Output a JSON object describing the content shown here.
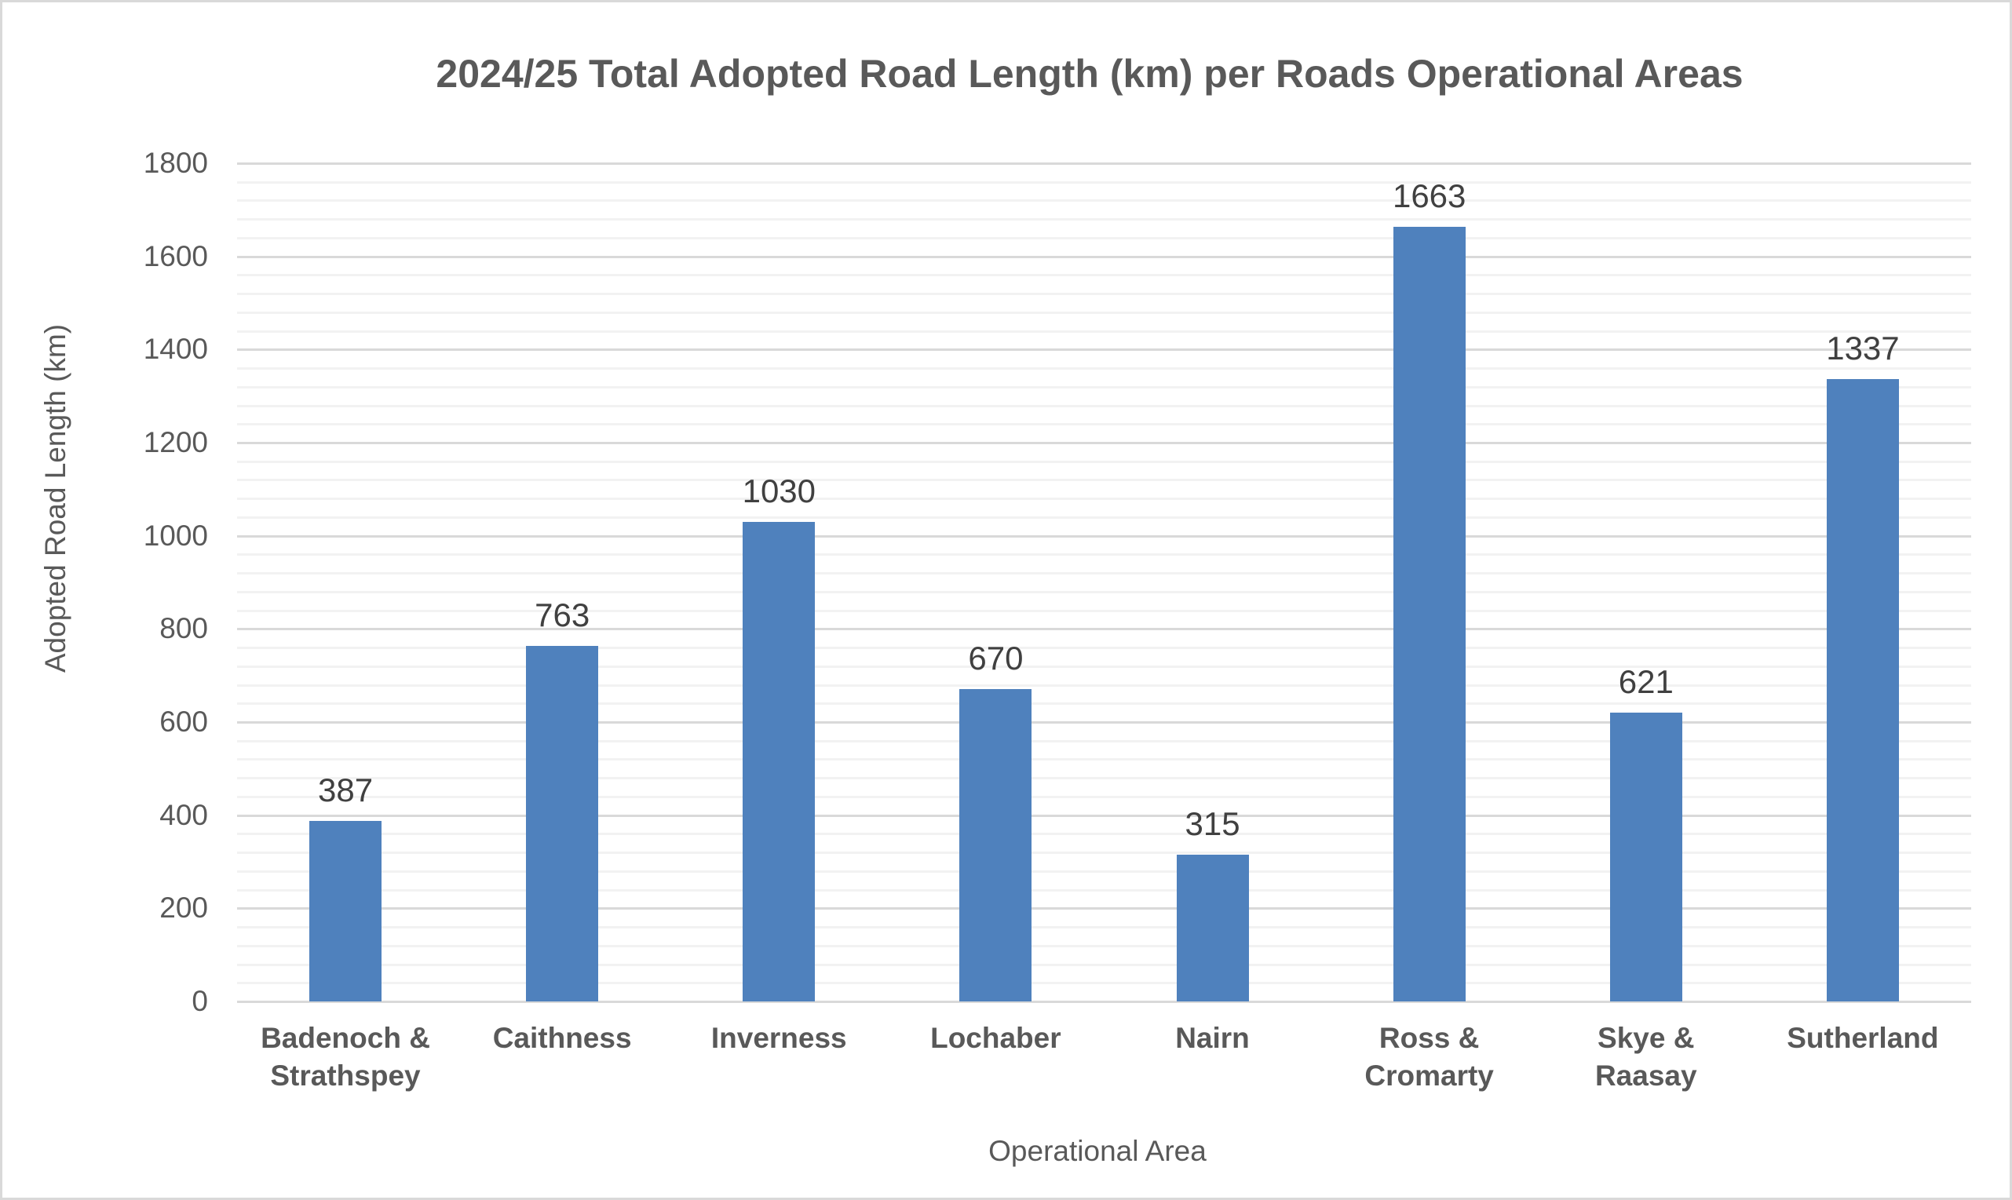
{
  "chart_data": {
    "type": "bar",
    "title": "2024/25 Total Adopted Road Length (km) per Roads Operational Areas",
    "xlabel": "Operational Area",
    "ylabel": "Adopted Road Length (km)",
    "categories": [
      "Badenoch & Strathspey",
      "Caithness",
      "Inverness",
      "Lochaber",
      "Nairn",
      "Ross & Cromarty",
      "Skye & Raasay",
      "Sutherland"
    ],
    "category_lines": [
      [
        "Badenoch &",
        "Strathspey"
      ],
      [
        "Caithness"
      ],
      [
        "Inverness"
      ],
      [
        "Lochaber"
      ],
      [
        "Nairn"
      ],
      [
        "Ross &",
        "Cromarty"
      ],
      [
        "Skye &",
        "Raasay"
      ],
      [
        "Sutherland"
      ]
    ],
    "values": [
      387,
      763,
      1030,
      670,
      315,
      1663,
      621,
      1337
    ],
    "data_labels": [
      "387",
      "763",
      "1030",
      "670",
      "315",
      "1663",
      "621",
      "1337"
    ],
    "ylim": [
      0,
      1800
    ],
    "yticks": [
      0,
      200,
      400,
      600,
      800,
      1000,
      1200,
      1400,
      1600,
      1800
    ],
    "ytick_labels": [
      "0",
      "200",
      "400",
      "600",
      "800",
      "1000",
      "1200",
      "1400",
      "1600",
      "1800"
    ],
    "minor_tick_step": 40,
    "grid": true,
    "legend": "none",
    "colors": {
      "bar": "#4f81bd",
      "major_grid": "#d9d9d9",
      "minor_grid": "#f2f2f2",
      "text": "#595959",
      "data_label": "#404040"
    }
  }
}
